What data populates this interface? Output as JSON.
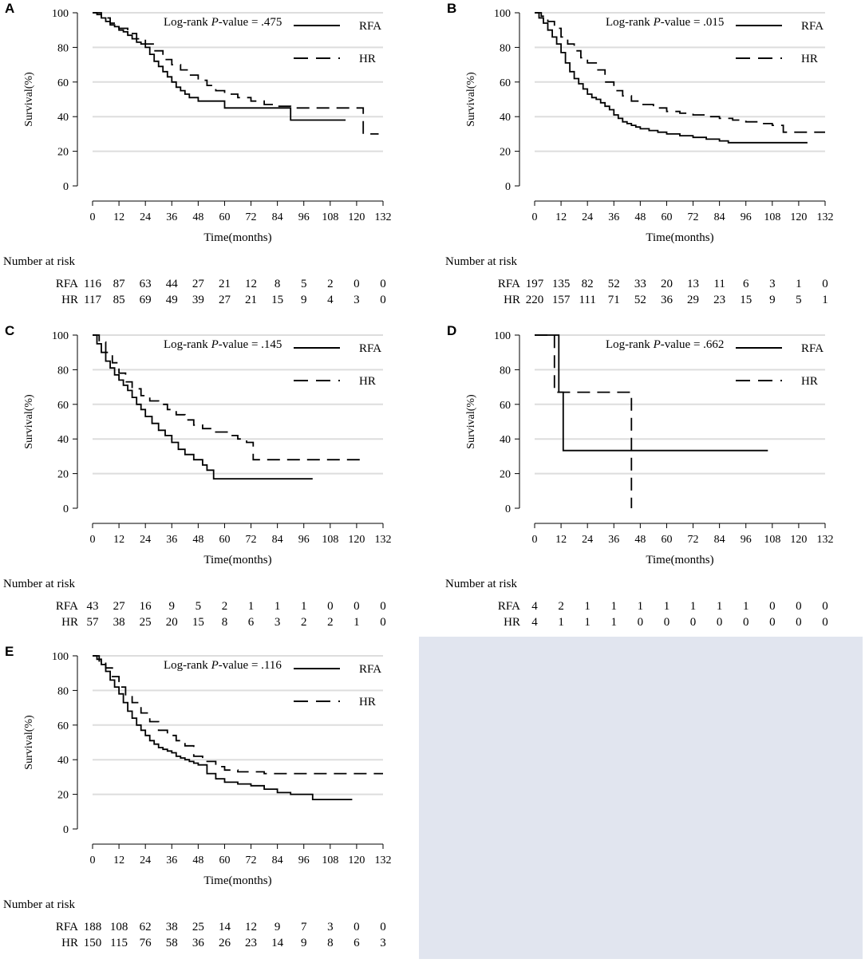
{
  "colors": {
    "background": "#ffffff",
    "gridline": "#dddddd",
    "line": "#000000",
    "empty_panel": "#e1e5ef"
  },
  "common": {
    "xlabel": "Time(months)",
    "ylabel": "Survival(%)",
    "risk_title": "Number at risk",
    "pvalue_prefix": "Log-rank ",
    "pvalue_p": "P",
    "x_ticks": [
      0,
      12,
      24,
      36,
      48,
      60,
      72,
      84,
      96,
      108,
      120,
      132
    ],
    "y_ticks": [
      0,
      20,
      40,
      60,
      80,
      100
    ]
  },
  "chart_data": [
    {
      "panel": "A",
      "type": "line",
      "xlabel": "Time(months)",
      "ylabel": "Survival(%)",
      "xlim": [
        0,
        132
      ],
      "ylim": [
        0,
        100
      ],
      "grid": true,
      "legend_placement": "top-right",
      "pvalue_suffix": "-value = .475",
      "series": [
        {
          "name": "RFA",
          "style": "solid",
          "x": [
            0,
            2,
            4,
            6,
            8,
            10,
            12,
            14,
            16,
            18,
            20,
            22,
            24,
            26,
            28,
            30,
            32,
            34,
            36,
            38,
            40,
            42,
            44,
            48,
            54,
            60,
            70,
            80,
            90,
            100,
            110,
            115
          ],
          "y": [
            100,
            99,
            97,
            95,
            93,
            92,
            90,
            89,
            87,
            85,
            83,
            82,
            80,
            76,
            72,
            69,
            66,
            63,
            60,
            57,
            55,
            53,
            51,
            49,
            49,
            45,
            45,
            45,
            38,
            38,
            38,
            38
          ]
        },
        {
          "name": "HR",
          "style": "dashed",
          "x": [
            0,
            4,
            8,
            12,
            16,
            20,
            24,
            28,
            32,
            36,
            40,
            44,
            48,
            52,
            56,
            60,
            66,
            72,
            78,
            84,
            90,
            100,
            110,
            122,
            123,
            130
          ],
          "y": [
            100,
            97,
            94,
            91,
            88,
            85,
            82,
            78,
            73,
            70,
            67,
            64,
            61,
            58,
            55,
            53,
            51,
            49,
            47,
            46,
            45,
            45,
            45,
            45,
            30,
            30
          ]
        }
      ],
      "risk": {
        "RFA": [
          "116",
          "87",
          "63",
          "44",
          "27",
          "21",
          "12",
          "8",
          "5",
          "2",
          "0",
          "0"
        ],
        "HR": [
          "117",
          "85",
          "69",
          "49",
          "39",
          "27",
          "21",
          "15",
          "9",
          "4",
          "3",
          "0"
        ]
      }
    },
    {
      "panel": "B",
      "type": "line",
      "xlabel": "Time(months)",
      "ylabel": "Survival(%)",
      "xlim": [
        0,
        132
      ],
      "ylim": [
        0,
        100
      ],
      "grid": true,
      "legend_placement": "top-right",
      "pvalue_suffix": "-value = .015",
      "series": [
        {
          "name": "RFA",
          "style": "solid",
          "x": [
            0,
            2,
            4,
            6,
            8,
            10,
            12,
            14,
            16,
            18,
            20,
            22,
            24,
            26,
            28,
            30,
            32,
            34,
            36,
            38,
            40,
            42,
            44,
            46,
            48,
            52,
            56,
            60,
            66,
            72,
            78,
            84,
            88,
            96,
            104,
            112,
            120,
            124
          ],
          "y": [
            100,
            97,
            94,
            90,
            86,
            82,
            77,
            71,
            66,
            62,
            59,
            56,
            53,
            51,
            50,
            48,
            46,
            44,
            41,
            39,
            37,
            36,
            35,
            34,
            33,
            32,
            31,
            30,
            29,
            28,
            27,
            26,
            25,
            25,
            25,
            25,
            25,
            25
          ]
        },
        {
          "name": "HR",
          "style": "dashed",
          "x": [
            0,
            3,
            6,
            9,
            12,
            15,
            18,
            21,
            24,
            28,
            32,
            36,
            40,
            44,
            48,
            54,
            60,
            66,
            72,
            78,
            84,
            90,
            96,
            102,
            108,
            112,
            113,
            124,
            132
          ],
          "y": [
            100,
            98,
            95,
            91,
            86,
            82,
            78,
            74,
            71,
            67,
            60,
            55,
            52,
            49,
            47,
            45,
            43,
            42,
            41,
            40,
            39,
            38,
            37,
            36,
            35,
            35,
            31,
            31,
            31
          ]
        }
      ],
      "risk": {
        "RFA": [
          "197",
          "135",
          "82",
          "52",
          "33",
          "20",
          "13",
          "11",
          "6",
          "3",
          "1",
          "0"
        ],
        "HR": [
          "220",
          "157",
          "111",
          "71",
          "52",
          "36",
          "29",
          "23",
          "15",
          "9",
          "5",
          "1"
        ]
      }
    },
    {
      "panel": "C",
      "type": "line",
      "xlabel": "Time(months)",
      "ylabel": "Survival(%)",
      "xlim": [
        0,
        132
      ],
      "ylim": [
        0,
        100
      ],
      "grid": true,
      "legend_placement": "top-right",
      "pvalue_suffix": "-value = .145",
      "series": [
        {
          "name": "RFA",
          "style": "solid",
          "x": [
            0,
            2,
            4,
            6,
            8,
            10,
            12,
            14,
            16,
            18,
            20,
            22,
            24,
            27,
            30,
            33,
            36,
            39,
            42,
            46,
            50,
            52,
            55,
            60,
            70,
            80,
            90,
            100
          ],
          "y": [
            100,
            95,
            90,
            85,
            81,
            77,
            74,
            71,
            68,
            64,
            60,
            57,
            53,
            49,
            45,
            42,
            38,
            34,
            31,
            28,
            25,
            22,
            17,
            17,
            17,
            17,
            17,
            17
          ]
        },
        {
          "name": "HR",
          "style": "dashed",
          "x": [
            0,
            3,
            6,
            9,
            12,
            15,
            18,
            22,
            26,
            30,
            34,
            38,
            42,
            46,
            50,
            56,
            62,
            66,
            70,
            73,
            80,
            90,
            100,
            110,
            122
          ],
          "y": [
            100,
            96,
            90,
            84,
            78,
            73,
            69,
            65,
            62,
            60,
            57,
            54,
            51,
            48,
            46,
            44,
            42,
            40,
            38,
            28,
            28,
            28,
            28,
            28,
            28
          ]
        }
      ],
      "risk": {
        "RFA": [
          "43",
          "27",
          "16",
          "9",
          "5",
          "2",
          "1",
          "1",
          "1",
          "0",
          "0",
          "0"
        ],
        "HR": [
          "57",
          "38",
          "25",
          "20",
          "15",
          "8",
          "6",
          "3",
          "2",
          "2",
          "1",
          "0"
        ]
      }
    },
    {
      "panel": "D",
      "type": "line",
      "xlabel": "Time(months)",
      "ylabel": "Survival(%)",
      "xlim": [
        0,
        132
      ],
      "ylim": [
        0,
        100
      ],
      "grid": true,
      "legend_placement": "top-right",
      "pvalue_suffix": "-value = .662",
      "series": [
        {
          "name": "RFA",
          "style": "solid",
          "x": [
            0,
            11,
            11,
            13,
            13,
            106
          ],
          "y": [
            100,
            100,
            67,
            67,
            33.3,
            33.3
          ]
        },
        {
          "name": "HR",
          "style": "dashed",
          "x": [
            0,
            9,
            9,
            44,
            44
          ],
          "y": [
            100,
            100,
            67,
            67,
            0
          ]
        }
      ],
      "risk": {
        "RFA": [
          "4",
          "2",
          "1",
          "1",
          "1",
          "1",
          "1",
          "1",
          "1",
          "0",
          "0",
          "0"
        ],
        "HR": [
          "4",
          "1",
          "1",
          "1",
          "0",
          "0",
          "0",
          "0",
          "0",
          "0",
          "0",
          "0"
        ]
      }
    },
    {
      "panel": "E",
      "type": "line",
      "xlabel": "Time(months)",
      "ylabel": "Survival(%)",
      "xlim": [
        0,
        132
      ],
      "ylim": [
        0,
        100
      ],
      "grid": true,
      "legend_placement": "top-right",
      "pvalue_suffix": "-value = .116",
      "series": [
        {
          "name": "RFA",
          "style": "solid",
          "x": [
            0,
            2,
            4,
            6,
            8,
            10,
            12,
            14,
            16,
            18,
            20,
            22,
            24,
            26,
            28,
            30,
            32,
            34,
            36,
            38,
            40,
            42,
            44,
            46,
            48,
            52,
            56,
            60,
            66,
            72,
            78,
            84,
            90,
            96,
            100,
            110,
            118
          ],
          "y": [
            100,
            98,
            95,
            91,
            86,
            82,
            78,
            73,
            68,
            64,
            60,
            57,
            54,
            51,
            49,
            47,
            46,
            45,
            44,
            42,
            41,
            40,
            39,
            38,
            37,
            32,
            29,
            27,
            26,
            25,
            23,
            21,
            20,
            20,
            17,
            17,
            17
          ]
        },
        {
          "name": "HR",
          "style": "dashed",
          "x": [
            0,
            3,
            6,
            9,
            12,
            15,
            18,
            22,
            26,
            30,
            34,
            38,
            42,
            46,
            50,
            56,
            60,
            66,
            72,
            78,
            84,
            96,
            108,
            120,
            132
          ],
          "y": [
            100,
            97,
            93,
            88,
            82,
            77,
            73,
            67,
            62,
            57,
            54,
            51,
            48,
            42,
            39,
            36,
            34,
            33,
            33,
            32,
            32,
            32,
            32,
            32,
            32
          ]
        }
      ],
      "risk": {
        "RFA": [
          "188",
          "108",
          "62",
          "38",
          "25",
          "14",
          "12",
          "9",
          "7",
          "3",
          "0",
          "0"
        ],
        "HR": [
          "150",
          "115",
          "76",
          "58",
          "36",
          "26",
          "23",
          "14",
          "9",
          "8",
          "6",
          "3"
        ]
      }
    }
  ]
}
